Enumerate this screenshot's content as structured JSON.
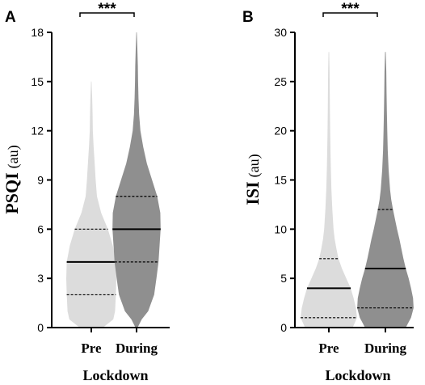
{
  "chart_data": [
    {
      "type": "violin",
      "panel": "A",
      "significance": "***",
      "categories": [
        "Pre",
        "During"
      ],
      "ylabel": "PSQI",
      "ylabel_unit": "(au)",
      "xlabel": "Lockdown",
      "ylim": [
        0,
        18
      ],
      "yticks": [
        "0",
        "3",
        "6",
        "9",
        "12",
        "15",
        "18"
      ],
      "series": [
        {
          "category": "Pre",
          "color": "#dcdcdc",
          "min": 0,
          "max": 15,
          "median": 4,
          "q1": 2,
          "q3": 6,
          "profile": [
            [
              0,
              0.45
            ],
            [
              0.5,
              0.85
            ],
            [
              1,
              0.92
            ],
            [
              2,
              0.95
            ],
            [
              3,
              0.97
            ],
            [
              4,
              0.95
            ],
            [
              5,
              0.83
            ],
            [
              6,
              0.64
            ],
            [
              7,
              0.38
            ],
            [
              8,
              0.22
            ],
            [
              9,
              0.17
            ],
            [
              10,
              0.13
            ],
            [
              11,
              0.09
            ],
            [
              12,
              0.06
            ],
            [
              13,
              0.05
            ],
            [
              14,
              0.035
            ],
            [
              15,
              0.01
            ]
          ]
        },
        {
          "category": "During",
          "color": "#8f8f8f",
          "min": 0,
          "max": 18,
          "median": 6,
          "q1": 4,
          "q3": 8,
          "profile": [
            [
              0,
              0.04
            ],
            [
              0.5,
              0.2
            ],
            [
              1,
              0.45
            ],
            [
              2,
              0.68
            ],
            [
              3,
              0.77
            ],
            [
              4,
              0.85
            ],
            [
              5,
              0.89
            ],
            [
              6,
              0.93
            ],
            [
              7,
              0.92
            ],
            [
              8,
              0.8
            ],
            [
              9,
              0.6
            ],
            [
              10,
              0.4
            ],
            [
              11,
              0.26
            ],
            [
              12,
              0.15
            ],
            [
              13,
              0.1
            ],
            [
              14,
              0.075
            ],
            [
              15,
              0.06
            ],
            [
              16,
              0.05
            ],
            [
              17,
              0.03
            ],
            [
              18,
              0.01
            ]
          ]
        }
      ]
    },
    {
      "type": "violin",
      "panel": "B",
      "significance": "***",
      "categories": [
        "Pre",
        "During"
      ],
      "ylabel": "ISI",
      "ylabel_unit": "(au)",
      "xlabel": "Lockdown",
      "ylim": [
        0,
        30
      ],
      "yticks": [
        "0",
        "5",
        "10",
        "15",
        "20",
        "25",
        "30"
      ],
      "series": [
        {
          "category": "Pre",
          "color": "#dcdcdc",
          "min": 0,
          "max": 28,
          "median": 4,
          "q1": 1,
          "q3": 7,
          "profile": [
            [
              0,
              0.82
            ],
            [
              1,
              0.97
            ],
            [
              2,
              0.93
            ],
            [
              3,
              0.85
            ],
            [
              4,
              0.75
            ],
            [
              5,
              0.6
            ],
            [
              6,
              0.45
            ],
            [
              7,
              0.33
            ],
            [
              8,
              0.26
            ],
            [
              9,
              0.2
            ],
            [
              10,
              0.16
            ],
            [
              12,
              0.12
            ],
            [
              14,
              0.09
            ],
            [
              16,
              0.07
            ],
            [
              18,
              0.055
            ],
            [
              20,
              0.045
            ],
            [
              22,
              0.035
            ],
            [
              24,
              0.03
            ],
            [
              26,
              0.025
            ],
            [
              28,
              0.01
            ]
          ]
        },
        {
          "category": "During",
          "color": "#8f8f8f",
          "min": 0,
          "max": 28,
          "median": 6,
          "q1": 2,
          "q3": 12,
          "profile": [
            [
              0,
              0.7
            ],
            [
              1,
              0.88
            ],
            [
              2,
              0.97
            ],
            [
              3,
              0.95
            ],
            [
              4,
              0.88
            ],
            [
              5,
              0.8
            ],
            [
              6,
              0.7
            ],
            [
              7,
              0.62
            ],
            [
              8,
              0.55
            ],
            [
              9,
              0.48
            ],
            [
              10,
              0.4
            ],
            [
              11,
              0.33
            ],
            [
              12,
              0.26
            ],
            [
              13,
              0.2
            ],
            [
              14,
              0.16
            ],
            [
              16,
              0.11
            ],
            [
              18,
              0.08
            ],
            [
              20,
              0.065
            ],
            [
              22,
              0.05
            ],
            [
              24,
              0.04
            ],
            [
              26,
              0.03
            ],
            [
              28,
              0.01
            ]
          ]
        }
      ]
    }
  ]
}
